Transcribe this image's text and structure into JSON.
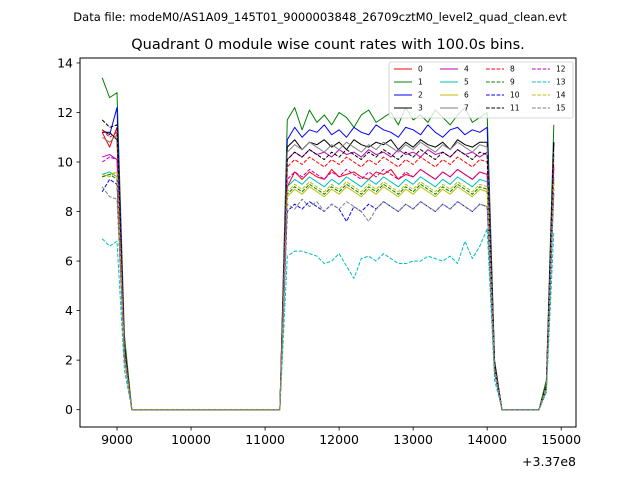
{
  "suptitle": "Data file: modeM0/AS1A09_145T01_9000003848_26709cztM0_level2_quad_clean.evt",
  "chart_data": {
    "type": "line",
    "title": "Quadrant 0 module wise count rates with 100.0s bins.",
    "xlabel": "",
    "ylabel": "",
    "x_offset_label": "+3.37e8",
    "xlim": [
      8500,
      15200
    ],
    "ylim": [
      -0.7,
      14.2
    ],
    "xticks": [
      9000,
      10000,
      11000,
      12000,
      13000,
      14000,
      15000
    ],
    "yticks": [
      0,
      2,
      4,
      6,
      8,
      10,
      12,
      14
    ],
    "legend_position": "top-right",
    "x": [
      8800,
      8900,
      9000,
      9100,
      9200,
      9300,
      9400,
      9500,
      9600,
      9700,
      9800,
      9900,
      10000,
      10100,
      10200,
      10300,
      10400,
      10500,
      10600,
      10700,
      10800,
      10900,
      11000,
      11100,
      11200,
      11300,
      11400,
      11500,
      11600,
      11700,
      11800,
      11900,
      12000,
      12100,
      12200,
      12300,
      12400,
      12500,
      12600,
      12700,
      12800,
      12900,
      13000,
      13100,
      13200,
      13300,
      13400,
      13500,
      13600,
      13700,
      13800,
      13900,
      14000,
      14100,
      14200,
      14300,
      14400,
      14500,
      14600,
      14700,
      14800,
      14900
    ],
    "series": [
      {
        "name": "0",
        "color": "#ff0000",
        "dash": "solid",
        "values": [
          11.2,
          10.6,
          11.4,
          2.5,
          0,
          0,
          0,
          0,
          0,
          0,
          0,
          0,
          0,
          0,
          0,
          0,
          0,
          0,
          0,
          0,
          0,
          0,
          0,
          0,
          0,
          9.0,
          9.6,
          9.3,
          9.6,
          9.4,
          9.3,
          9.7,
          9.4,
          9.5,
          9.6,
          9.4,
          9.3,
          9.6,
          9.5,
          9.7,
          9.3,
          9.5,
          9.4,
          9.7,
          9.5,
          9.3,
          9.6,
          9.4,
          9.7,
          9.5,
          9.3,
          9.6,
          9.5,
          1.8,
          0,
          0,
          0,
          0,
          0,
          0,
          1.0,
          9.8
        ]
      },
      {
        "name": "1",
        "color": "#008000",
        "dash": "solid",
        "values": [
          13.4,
          12.6,
          12.8,
          3.0,
          0,
          0,
          0,
          0,
          0,
          0,
          0,
          0,
          0,
          0,
          0,
          0,
          0,
          0,
          0,
          0,
          0,
          0,
          0,
          0,
          0,
          11.7,
          12.2,
          11.3,
          12.1,
          11.6,
          11.9,
          11.5,
          12.0,
          11.8,
          11.4,
          11.9,
          12.1,
          11.6,
          11.8,
          12.0,
          11.5,
          12.2,
          11.7,
          11.9,
          11.6,
          12.1,
          11.8,
          11.5,
          11.9,
          12.2,
          11.6,
          11.8,
          12.0,
          2.0,
          0,
          0,
          0,
          0,
          0,
          0,
          1.2,
          11.5
        ]
      },
      {
        "name": "2",
        "color": "#0000ff",
        "dash": "solid",
        "values": [
          11.3,
          11.1,
          12.2,
          2.6,
          0,
          0,
          0,
          0,
          0,
          0,
          0,
          0,
          0,
          0,
          0,
          0,
          0,
          0,
          0,
          0,
          0,
          0,
          0,
          0,
          0,
          10.9,
          11.4,
          11.0,
          11.3,
          11.2,
          11.5,
          11.1,
          11.3,
          11.0,
          11.4,
          11.2,
          11.1,
          11.5,
          11.3,
          11.2,
          11.0,
          11.4,
          11.3,
          11.1,
          11.5,
          11.2,
          11.0,
          11.3,
          11.4,
          11.1,
          11.3,
          11.2,
          11.4,
          1.9,
          0,
          0,
          0,
          0,
          0,
          0,
          1.0,
          10.8
        ]
      },
      {
        "name": "3",
        "color": "#000000",
        "dash": "solid",
        "values": [
          11.2,
          11.2,
          10.9,
          2.4,
          0,
          0,
          0,
          0,
          0,
          0,
          0,
          0,
          0,
          0,
          0,
          0,
          0,
          0,
          0,
          0,
          0,
          0,
          0,
          0,
          0,
          10.6,
          10.9,
          10.5,
          10.8,
          10.7,
          10.9,
          10.6,
          10.8,
          10.5,
          10.9,
          10.7,
          10.6,
          10.8,
          10.7,
          10.9,
          10.5,
          10.8,
          10.6,
          10.9,
          10.7,
          10.6,
          10.8,
          10.5,
          10.9,
          10.7,
          10.6,
          10.8,
          10.8,
          1.9,
          0,
          0,
          0,
          0,
          0,
          0,
          1.0,
          10.8
        ]
      },
      {
        "name": "4",
        "color": "#bf00bf",
        "dash": "solid",
        "values": [
          10.2,
          10.3,
          10.1,
          2.3,
          0,
          0,
          0,
          0,
          0,
          0,
          0,
          0,
          0,
          0,
          0,
          0,
          0,
          0,
          0,
          0,
          0,
          0,
          0,
          0,
          0,
          10.1,
          10.4,
          10.2,
          10.5,
          10.3,
          10.4,
          10.2,
          10.5,
          10.3,
          10.4,
          10.2,
          10.5,
          10.3,
          10.4,
          10.2,
          10.5,
          10.3,
          10.4,
          10.2,
          10.5,
          10.3,
          10.4,
          10.2,
          10.5,
          10.3,
          10.4,
          10.2,
          10.4,
          1.8,
          0,
          0,
          0,
          0,
          0,
          0,
          1.0,
          10.3
        ]
      },
      {
        "name": "5",
        "color": "#00bfbf",
        "dash": "solid",
        "values": [
          9.5,
          9.6,
          9.4,
          2.2,
          0,
          0,
          0,
          0,
          0,
          0,
          0,
          0,
          0,
          0,
          0,
          0,
          0,
          0,
          0,
          0,
          0,
          0,
          0,
          0,
          0,
          9.0,
          9.3,
          9.1,
          9.4,
          9.2,
          9.0,
          9.3,
          9.1,
          9.4,
          9.2,
          9.0,
          9.3,
          9.1,
          9.4,
          9.2,
          9.0,
          9.3,
          9.1,
          9.4,
          9.2,
          9.0,
          9.3,
          9.1,
          9.4,
          9.2,
          9.0,
          9.3,
          9.2,
          1.6,
          0,
          0,
          0,
          0,
          0,
          0,
          0.9,
          9.4
        ]
      },
      {
        "name": "6",
        "color": "#bfbf00",
        "dash": "solid",
        "values": [
          9.4,
          9.5,
          9.6,
          2.2,
          0,
          0,
          0,
          0,
          0,
          0,
          0,
          0,
          0,
          0,
          0,
          0,
          0,
          0,
          0,
          0,
          0,
          0,
          0,
          0,
          0,
          8.6,
          8.9,
          8.7,
          9.0,
          8.8,
          8.6,
          8.9,
          8.7,
          9.0,
          8.8,
          8.6,
          8.9,
          8.7,
          9.0,
          8.8,
          8.6,
          8.9,
          8.7,
          9.0,
          8.8,
          8.6,
          8.9,
          8.7,
          9.0,
          8.8,
          8.6,
          8.9,
          8.8,
          1.6,
          0,
          0,
          0,
          0,
          0,
          0,
          0.9,
          9.2
        ]
      },
      {
        "name": "7",
        "color": "#7f7f7f",
        "dash": "solid",
        "values": [
          11.0,
          10.8,
          11.1,
          2.4,
          0,
          0,
          0,
          0,
          0,
          0,
          0,
          0,
          0,
          0,
          0,
          0,
          0,
          0,
          0,
          0,
          0,
          0,
          0,
          0,
          0,
          10.4,
          10.7,
          10.5,
          10.8,
          10.6,
          10.4,
          10.7,
          10.5,
          10.8,
          10.6,
          10.4,
          10.7,
          10.5,
          10.8,
          10.6,
          10.4,
          10.7,
          10.5,
          10.8,
          10.6,
          10.4,
          10.7,
          10.5,
          10.8,
          10.6,
          10.4,
          10.7,
          10.6,
          1.8,
          0,
          0,
          0,
          0,
          0,
          0,
          1.0,
          10.5
        ]
      },
      {
        "name": "8",
        "color": "#ff0000",
        "dash": "dashed",
        "values": [
          11.3,
          11.0,
          11.2,
          2.5,
          0,
          0,
          0,
          0,
          0,
          0,
          0,
          0,
          0,
          0,
          0,
          0,
          0,
          0,
          0,
          0,
          0,
          0,
          0,
          0,
          0,
          9.8,
          10.1,
          9.9,
          10.2,
          10.0,
          9.8,
          10.1,
          9.9,
          10.2,
          10.0,
          9.8,
          10.1,
          9.9,
          10.2,
          10.0,
          9.8,
          10.1,
          9.9,
          10.2,
          10.0,
          9.8,
          10.1,
          9.9,
          10.2,
          10.0,
          9.8,
          10.1,
          10.0,
          1.8,
          0,
          0,
          0,
          0,
          0,
          0,
          1.0,
          10.0
        ]
      },
      {
        "name": "9",
        "color": "#008000",
        "dash": "dashed",
        "values": [
          9.4,
          9.5,
          9.3,
          2.2,
          0,
          0,
          0,
          0,
          0,
          0,
          0,
          0,
          0,
          0,
          0,
          0,
          0,
          0,
          0,
          0,
          0,
          0,
          0,
          0,
          0,
          8.7,
          9.0,
          8.8,
          9.1,
          8.9,
          8.7,
          9.0,
          8.8,
          9.1,
          8.9,
          8.7,
          9.0,
          8.8,
          9.1,
          8.9,
          8.7,
          9.0,
          8.8,
          9.1,
          8.9,
          8.7,
          9.0,
          8.8,
          9.1,
          8.9,
          8.7,
          9.0,
          8.9,
          1.6,
          0,
          0,
          0,
          0,
          0,
          0,
          0.9,
          9.3
        ]
      },
      {
        "name": "10",
        "color": "#0000ff",
        "dash": "dashed",
        "values": [
          8.8,
          9.3,
          9.1,
          2.1,
          0,
          0,
          0,
          0,
          0,
          0,
          0,
          0,
          0,
          0,
          0,
          0,
          0,
          0,
          0,
          0,
          0,
          0,
          0,
          0,
          0,
          8.0,
          8.3,
          8.1,
          8.4,
          8.2,
          8.0,
          8.3,
          8.1,
          7.6,
          8.2,
          8.0,
          8.3,
          8.1,
          8.4,
          8.2,
          8.0,
          8.3,
          8.1,
          8.4,
          8.2,
          8.0,
          8.3,
          8.1,
          8.4,
          8.2,
          8.0,
          8.3,
          8.2,
          1.5,
          0,
          0,
          0,
          0,
          0,
          0,
          0.8,
          8.9
        ]
      },
      {
        "name": "11",
        "color": "#000000",
        "dash": "dashed",
        "values": [
          11.7,
          11.4,
          11.5,
          2.5,
          0,
          0,
          0,
          0,
          0,
          0,
          0,
          0,
          0,
          0,
          0,
          0,
          0,
          0,
          0,
          0,
          0,
          0,
          0,
          0,
          0,
          10.1,
          10.4,
          10.2,
          10.5,
          10.3,
          10.1,
          10.4,
          10.2,
          10.5,
          10.3,
          10.1,
          10.4,
          10.2,
          10.5,
          10.3,
          10.1,
          10.4,
          10.2,
          10.5,
          10.3,
          10.1,
          10.4,
          10.2,
          10.5,
          10.3,
          10.1,
          10.4,
          10.3,
          1.8,
          0,
          0,
          0,
          0,
          0,
          0,
          1.0,
          10.8
        ]
      },
      {
        "name": "12",
        "color": "#bf00bf",
        "dash": "dashed",
        "values": [
          10.0,
          10.2,
          10.1,
          2.3,
          0,
          0,
          0,
          0,
          0,
          0,
          0,
          0,
          0,
          0,
          0,
          0,
          0,
          0,
          0,
          0,
          0,
          0,
          0,
          0,
          0,
          9.3,
          9.6,
          9.4,
          9.7,
          9.5,
          9.3,
          9.6,
          9.4,
          9.7,
          9.5,
          9.3,
          9.6,
          9.4,
          9.7,
          9.5,
          9.3,
          9.6,
          9.4,
          9.7,
          9.5,
          9.3,
          9.6,
          9.4,
          9.7,
          9.5,
          9.3,
          9.6,
          9.5,
          1.7,
          0,
          0,
          0,
          0,
          0,
          0,
          0.9,
          9.8
        ]
      },
      {
        "name": "13",
        "color": "#00bfbf",
        "dash": "dashed",
        "values": [
          6.9,
          6.6,
          6.8,
          1.6,
          0,
          0,
          0,
          0,
          0,
          0,
          0,
          0,
          0,
          0,
          0,
          0,
          0,
          0,
          0,
          0,
          0,
          0,
          0,
          0,
          0,
          6.2,
          6.4,
          6.4,
          6.3,
          6.2,
          5.9,
          6.0,
          6.3,
          5.8,
          5.3,
          6.1,
          6.2,
          6.0,
          6.3,
          6.1,
          5.9,
          5.9,
          6.0,
          6.0,
          6.2,
          6.1,
          6.0,
          6.2,
          5.9,
          6.8,
          6.1,
          6.6,
          7.3,
          1.2,
          0,
          0,
          0,
          0,
          0,
          0,
          0.7,
          7.2
        ]
      },
      {
        "name": "14",
        "color": "#bfbf00",
        "dash": "dashed",
        "values": [
          9.5,
          9.4,
          9.6,
          2.2,
          0,
          0,
          0,
          0,
          0,
          0,
          0,
          0,
          0,
          0,
          0,
          0,
          0,
          0,
          0,
          0,
          0,
          0,
          0,
          0,
          0,
          8.8,
          9.1,
          8.9,
          9.2,
          9.0,
          8.8,
          9.1,
          8.9,
          9.2,
          9.0,
          8.8,
          9.1,
          8.9,
          9.2,
          9.0,
          8.8,
          9.1,
          8.9,
          9.2,
          9.0,
          8.8,
          9.1,
          8.9,
          9.2,
          9.0,
          8.8,
          9.1,
          9.0,
          1.6,
          0,
          0,
          0,
          0,
          0,
          0,
          0.9,
          9.2
        ]
      },
      {
        "name": "15",
        "color": "#7f7f7f",
        "dash": "dashed",
        "values": [
          9.0,
          8.6,
          8.5,
          2.0,
          0,
          0,
          0,
          0,
          0,
          0,
          0,
          0,
          0,
          0,
          0,
          0,
          0,
          0,
          0,
          0,
          0,
          0,
          0,
          0,
          0,
          8.3,
          8.1,
          8.5,
          8.2,
          8.4,
          8.0,
          8.3,
          8.1,
          8.4,
          8.2,
          8.0,
          7.6,
          8.1,
          8.4,
          8.2,
          8.0,
          8.3,
          8.1,
          8.4,
          8.2,
          8.0,
          8.3,
          8.1,
          8.4,
          8.2,
          8.0,
          8.3,
          8.2,
          1.5,
          0,
          0,
          0,
          0,
          0,
          0,
          0.8,
          8.7
        ]
      }
    ]
  }
}
